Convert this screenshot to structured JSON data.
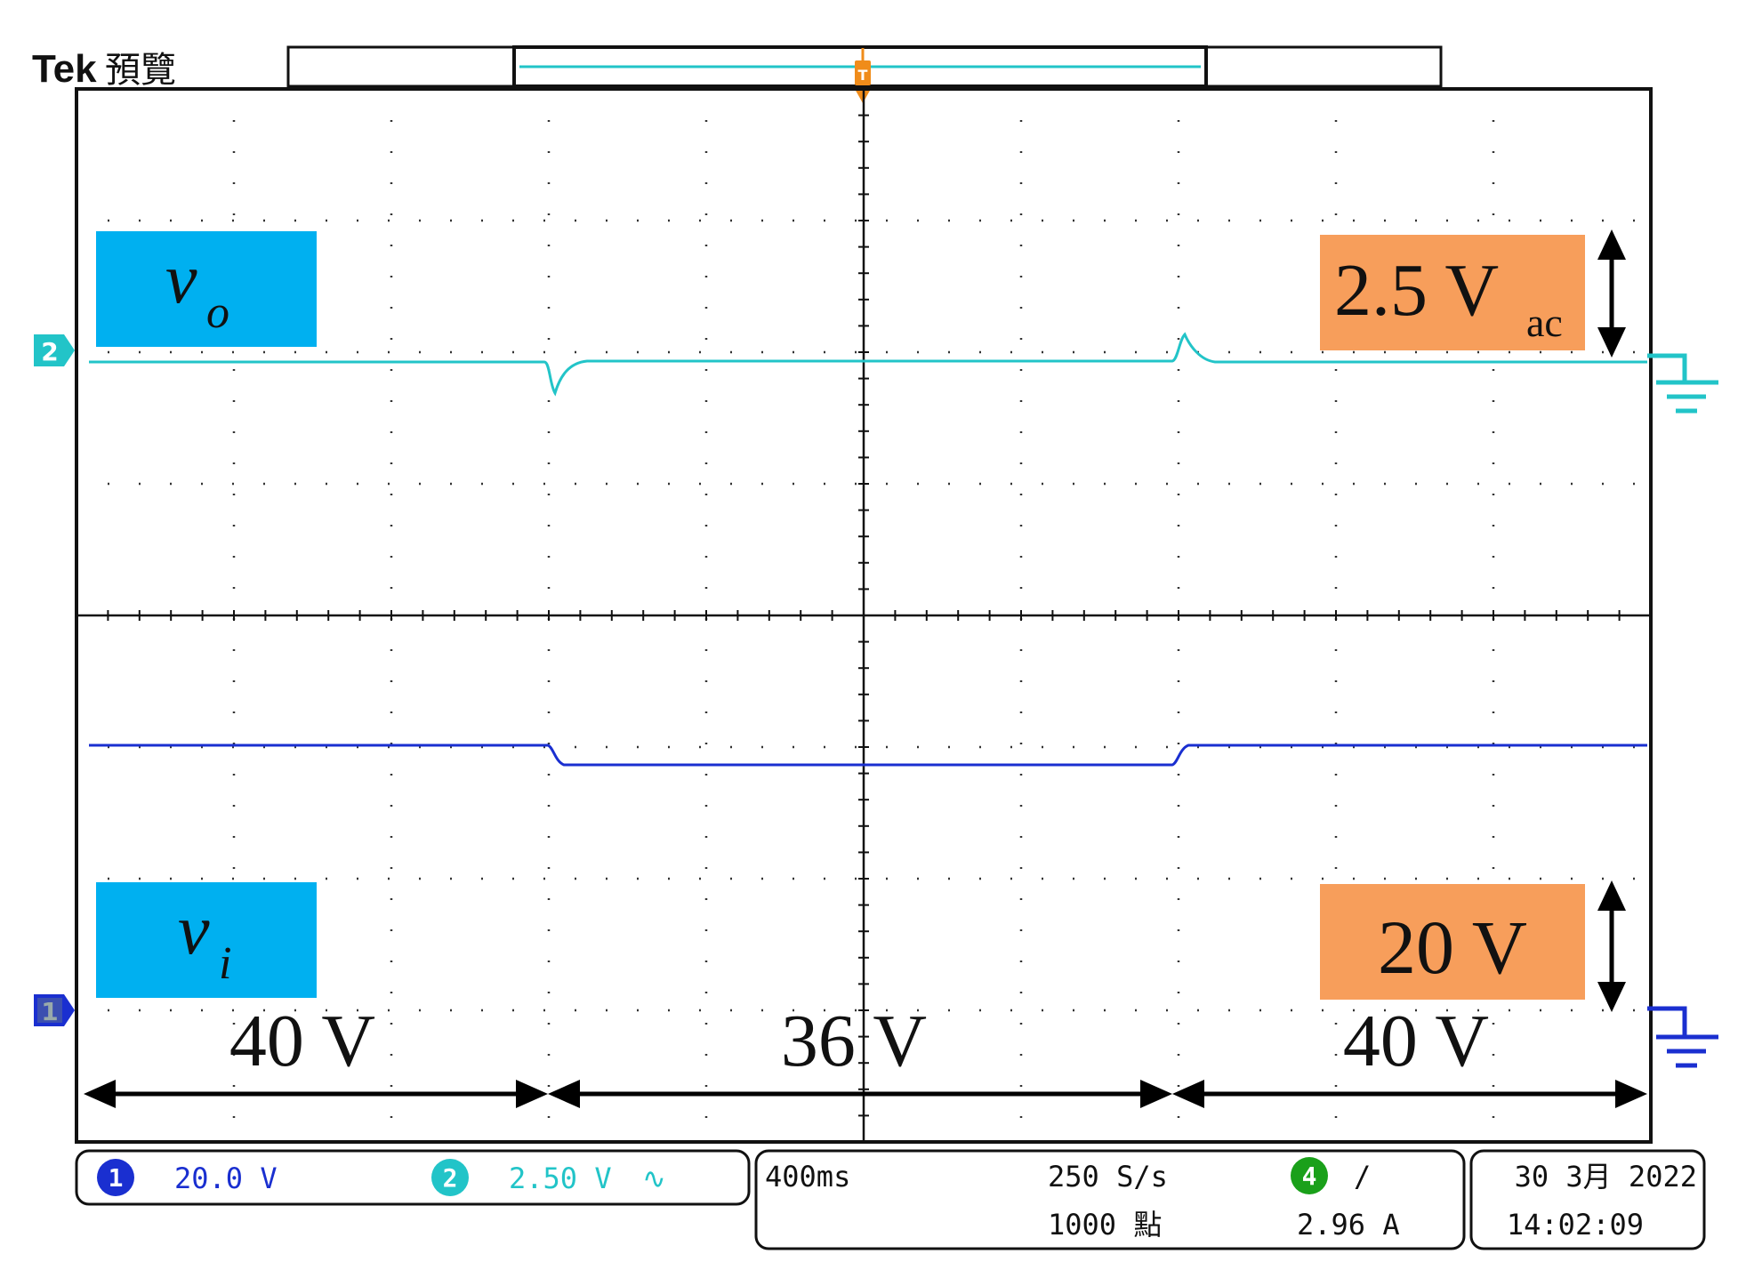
{
  "header": {
    "brand": "Tek",
    "mode": "預覽",
    "trigger_marker": "T"
  },
  "channels": [
    {
      "id": "2",
      "color": "#22c4c8"
    },
    {
      "id": "1",
      "color": "#1a2fd0"
    }
  ],
  "annotations": {
    "vo_symbol": "v",
    "vo_sub": "o",
    "vi_symbol": "v",
    "vi_sub": "i",
    "scale_top_main": "2.5 V",
    "scale_top_sub": "ac",
    "scale_bottom": "20 V",
    "segments": [
      "40 V",
      "36 V",
      "40 V"
    ],
    "label_bg": "#00b0f0",
    "scale_bg": "#f79e5b"
  },
  "status": {
    "ch1_num": "1",
    "ch1_scale": "20.0 V",
    "ch2_num": "2",
    "ch2_scale": "2.50 V",
    "ch2_coupling": "∿",
    "timebase": "400ms",
    "sample_rate": "250 S/s",
    "record_length": "1000 點",
    "trig_ch": "4",
    "trig_slope": "/",
    "trig_level": "2.96 A",
    "date": "30 3月 2022",
    "time": "14:02:09"
  },
  "colors": {
    "ch1": "#1a2fd0",
    "ch2": "#22c4c8",
    "trigger": "#f08c1a",
    "ch4": "#1aa01a"
  }
}
